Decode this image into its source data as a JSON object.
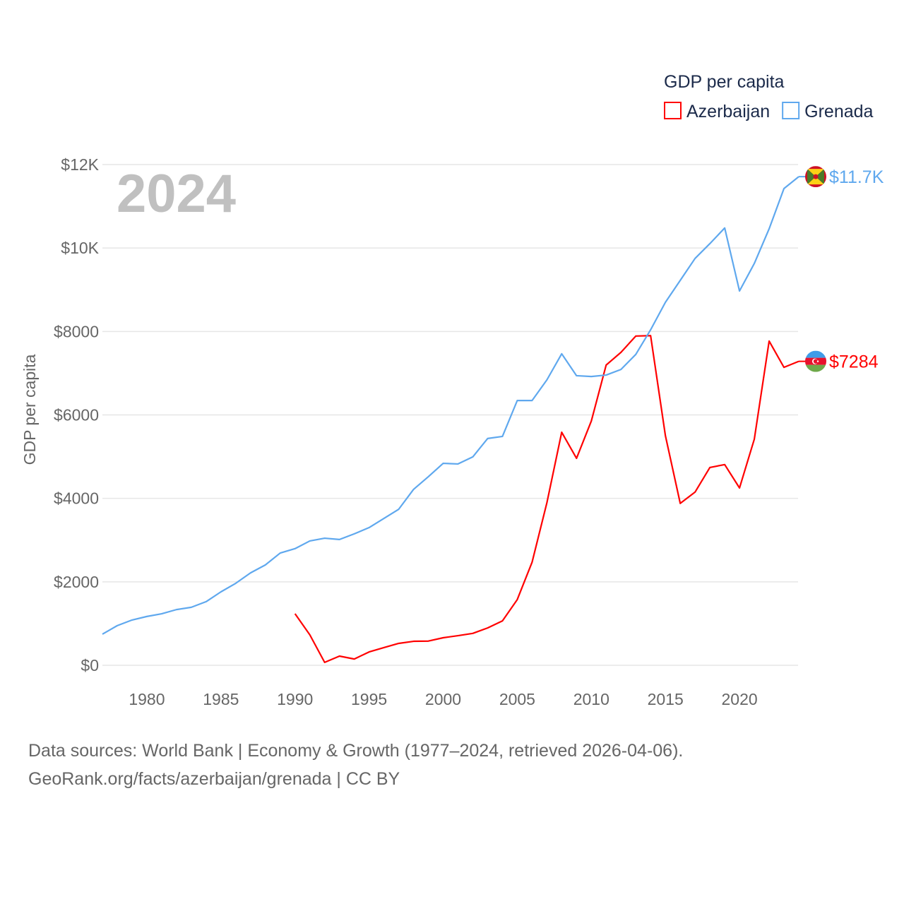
{
  "chart_data": {
    "type": "line",
    "title": "GDP per capita",
    "ylabel": "GDP per capita",
    "xlabel": "",
    "year_watermark": "2024",
    "xlim": [
      1977,
      2024
    ],
    "ylim": [
      0,
      12000
    ],
    "x_ticks": [
      1980,
      1985,
      1990,
      1995,
      2000,
      2005,
      2010,
      2015,
      2020
    ],
    "y_ticks": [
      0,
      2000,
      4000,
      6000,
      8000,
      10000,
      12000
    ],
    "y_tick_labels": [
      "$0",
      "$2000",
      "$4000",
      "$6000",
      "$8000",
      "$10K",
      "$12K"
    ],
    "grid": true,
    "legend_position": "top-right",
    "series": [
      {
        "name": "Azerbaijan",
        "color": "#ff0000",
        "end_label": "$7284",
        "flag": "azerbaijan-flag",
        "x": [
          1990,
          1991,
          1992,
          1993,
          1994,
          1995,
          1996,
          1997,
          1998,
          1999,
          2000,
          2001,
          2002,
          2003,
          2004,
          2005,
          2006,
          2007,
          2008,
          2009,
          2010,
          2011,
          2012,
          2013,
          2014,
          2015,
          2016,
          2017,
          2018,
          2019,
          2020,
          2021,
          2022,
          2023,
          2024
        ],
        "values": [
          1235,
          730,
          70,
          220,
          150,
          320,
          425,
          525,
          575,
          580,
          660,
          710,
          765,
          895,
          1065,
          1575,
          2470,
          3895,
          5585,
          4960,
          5855,
          7195,
          7500,
          7890,
          7900,
          5500,
          3880,
          4150,
          4740,
          4810,
          4250,
          5420,
          7770,
          7140,
          7284
        ]
      },
      {
        "name": "Grenada",
        "color": "#5fa8ee",
        "end_label": "$11.7K",
        "flag": "grenada-flag",
        "x": [
          1977,
          1978,
          1979,
          1980,
          1981,
          1982,
          1983,
          1984,
          1985,
          1986,
          1987,
          1988,
          1989,
          1990,
          1991,
          1992,
          1993,
          1994,
          1995,
          1996,
          1997,
          1998,
          1999,
          2000,
          2001,
          2002,
          2003,
          2004,
          2005,
          2006,
          2007,
          2008,
          2009,
          2010,
          2011,
          2012,
          2013,
          2014,
          2015,
          2016,
          2017,
          2018,
          2019,
          2020,
          2021,
          2022,
          2023,
          2024
        ],
        "values": [
          745,
          950,
          1085,
          1170,
          1235,
          1335,
          1390,
          1525,
          1760,
          1965,
          2215,
          2405,
          2690,
          2795,
          2980,
          3045,
          3015,
          3150,
          3300,
          3520,
          3740,
          4215,
          4520,
          4840,
          4825,
          4995,
          5435,
          5485,
          6345,
          6345,
          6840,
          7465,
          6940,
          6920,
          6955,
          7090,
          7450,
          8040,
          8700,
          9225,
          9750,
          10105,
          10480,
          8970,
          9630,
          10460,
          11425,
          11710
        ]
      }
    ]
  },
  "footer": {
    "line1": "Data sources: World Bank | Economy & Growth (1977–2024, retrieved 2026-04-06).",
    "line2": "GeoRank.org/facts/azerbaijan/grenada | CC BY"
  }
}
